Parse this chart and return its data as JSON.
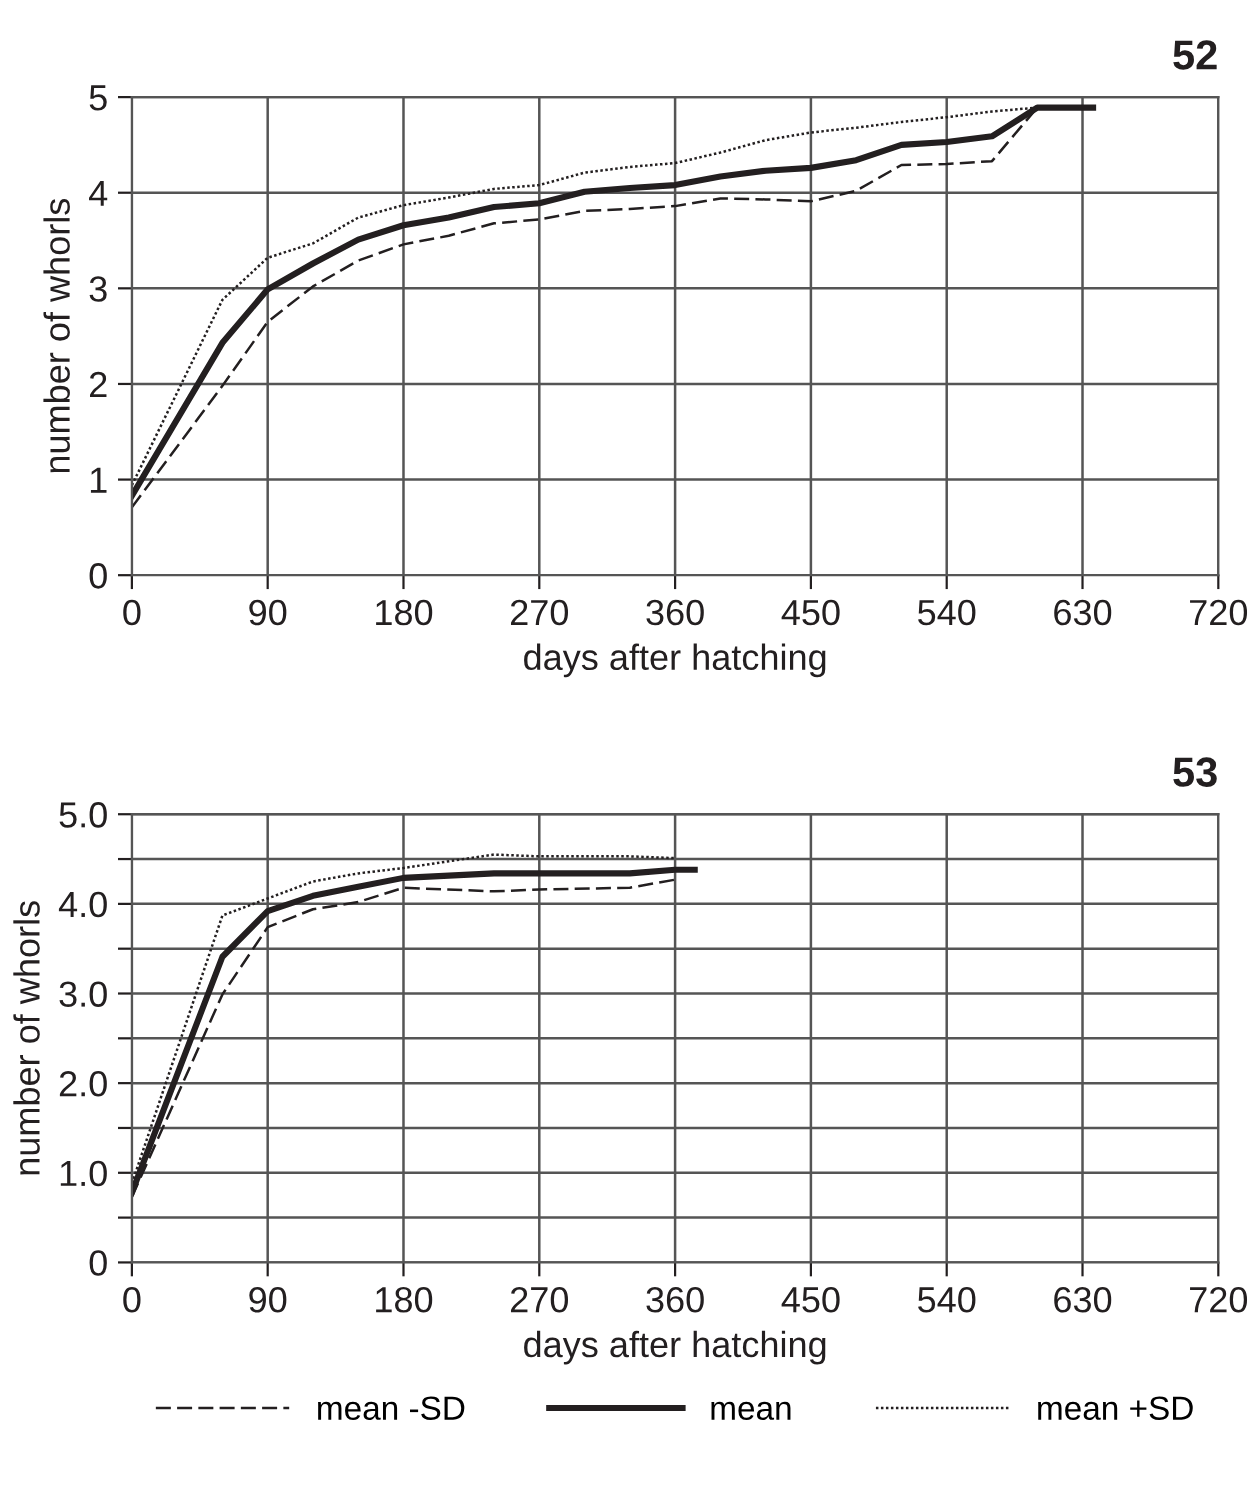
{
  "chart_data": [
    {
      "type": "line",
      "title": "52",
      "xlabel": "days after hatching",
      "ylabel": "number of whorls",
      "xlim": [
        0,
        720
      ],
      "xticks": [
        0,
        90,
        180,
        270,
        360,
        450,
        540,
        630,
        720
      ],
      "ylim": [
        0,
        5
      ],
      "yticks": [
        0,
        1,
        2,
        3,
        4,
        5
      ],
      "grid": true,
      "marker": "none",
      "series": [
        {
          "color": "#231f20",
          "line_style": "dashed",
          "x": [
            0,
            60,
            90,
            120,
            150,
            180,
            210,
            240,
            270,
            300,
            330,
            360,
            390,
            420,
            450,
            480,
            510,
            540,
            570,
            600
          ],
          "values": [
            0.71,
            1.98,
            2.65,
            3.02,
            3.29,
            3.46,
            3.55,
            3.68,
            3.72,
            3.81,
            3.83,
            3.86,
            3.94,
            3.93,
            3.91,
            4.02,
            4.29,
            4.3,
            4.33,
            4.89
          ]
        },
        {
          "color": "#231f20",
          "line_style": "solid",
          "x": [
            0,
            60,
            90,
            120,
            150,
            180,
            210,
            240,
            270,
            300,
            330,
            360,
            390,
            420,
            450,
            480,
            510,
            540,
            570,
            600,
            637
          ],
          "values": [
            0.83,
            2.43,
            2.99,
            3.26,
            3.51,
            3.66,
            3.74,
            3.85,
            3.89,
            4.01,
            4.05,
            4.08,
            4.17,
            4.23,
            4.26,
            4.34,
            4.5,
            4.53,
            4.59,
            4.89,
            4.89
          ]
        },
        {
          "color": "#231f20",
          "line_style": "dotted",
          "x": [
            0,
            60,
            90,
            120,
            150,
            180,
            210,
            240,
            270,
            300,
            330,
            360,
            390,
            420,
            450,
            480,
            510,
            540,
            570,
            600
          ],
          "values": [
            0.94,
            2.88,
            3.32,
            3.47,
            3.74,
            3.87,
            3.95,
            4.04,
            4.08,
            4.21,
            4.27,
            4.31,
            4.42,
            4.55,
            4.63,
            4.68,
            4.74,
            4.79,
            4.85,
            4.89
          ]
        }
      ]
    },
    {
      "type": "line",
      "title": "53",
      "xlabel": "days after hatching",
      "ylabel": "number of whorls",
      "xlim": [
        0,
        720
      ],
      "xticks": [
        0,
        90,
        180,
        270,
        360,
        450,
        540,
        630,
        720
      ],
      "ylim": [
        0,
        5
      ],
      "yticks": [
        0,
        {
          "value": 0.5,
          "label": null
        },
        {
          "value": 1,
          "label": "1.0"
        },
        {
          "value": 1.5,
          "label": null
        },
        {
          "value": 2,
          "label": "2.0"
        },
        {
          "value": 2.5,
          "label": null
        },
        {
          "value": 3,
          "label": "3.0"
        },
        {
          "value": 3.5,
          "label": null
        },
        {
          "value": 4,
          "label": "4.0"
        },
        {
          "value": 4.5,
          "label": null
        },
        {
          "value": 5,
          "label": "5.0"
        }
      ],
      "grid": true,
      "legend": "bottom",
      "marker": "none",
      "series": [
        {
          "name": "mean -SD",
          "color": "#231f20",
          "line_style": "dashed",
          "x": [
            0,
            60,
            90,
            120,
            150,
            180,
            240,
            270,
            330,
            360
          ],
          "values": [
            0.73,
            2.99,
            3.74,
            3.94,
            4.02,
            4.18,
            4.14,
            4.16,
            4.18,
            4.27
          ]
        },
        {
          "name": "mean",
          "color": "#231f20",
          "line_style": "solid",
          "x": [
            0,
            60,
            90,
            120,
            150,
            180,
            240,
            270,
            330,
            360,
            373
          ],
          "values": [
            0.78,
            3.41,
            3.92,
            4.09,
            4.19,
            4.29,
            4.34,
            4.34,
            4.34,
            4.38,
            4.38
          ]
        },
        {
          "name": "mean +SD",
          "color": "#231f20",
          "line_style": "dotted",
          "x": [
            0,
            60,
            90,
            120,
            150,
            180,
            240,
            270,
            330,
            360
          ],
          "values": [
            0.88,
            3.87,
            4.06,
            4.25,
            4.34,
            4.4,
            4.55,
            4.53,
            4.53,
            4.51
          ]
        }
      ]
    }
  ]
}
